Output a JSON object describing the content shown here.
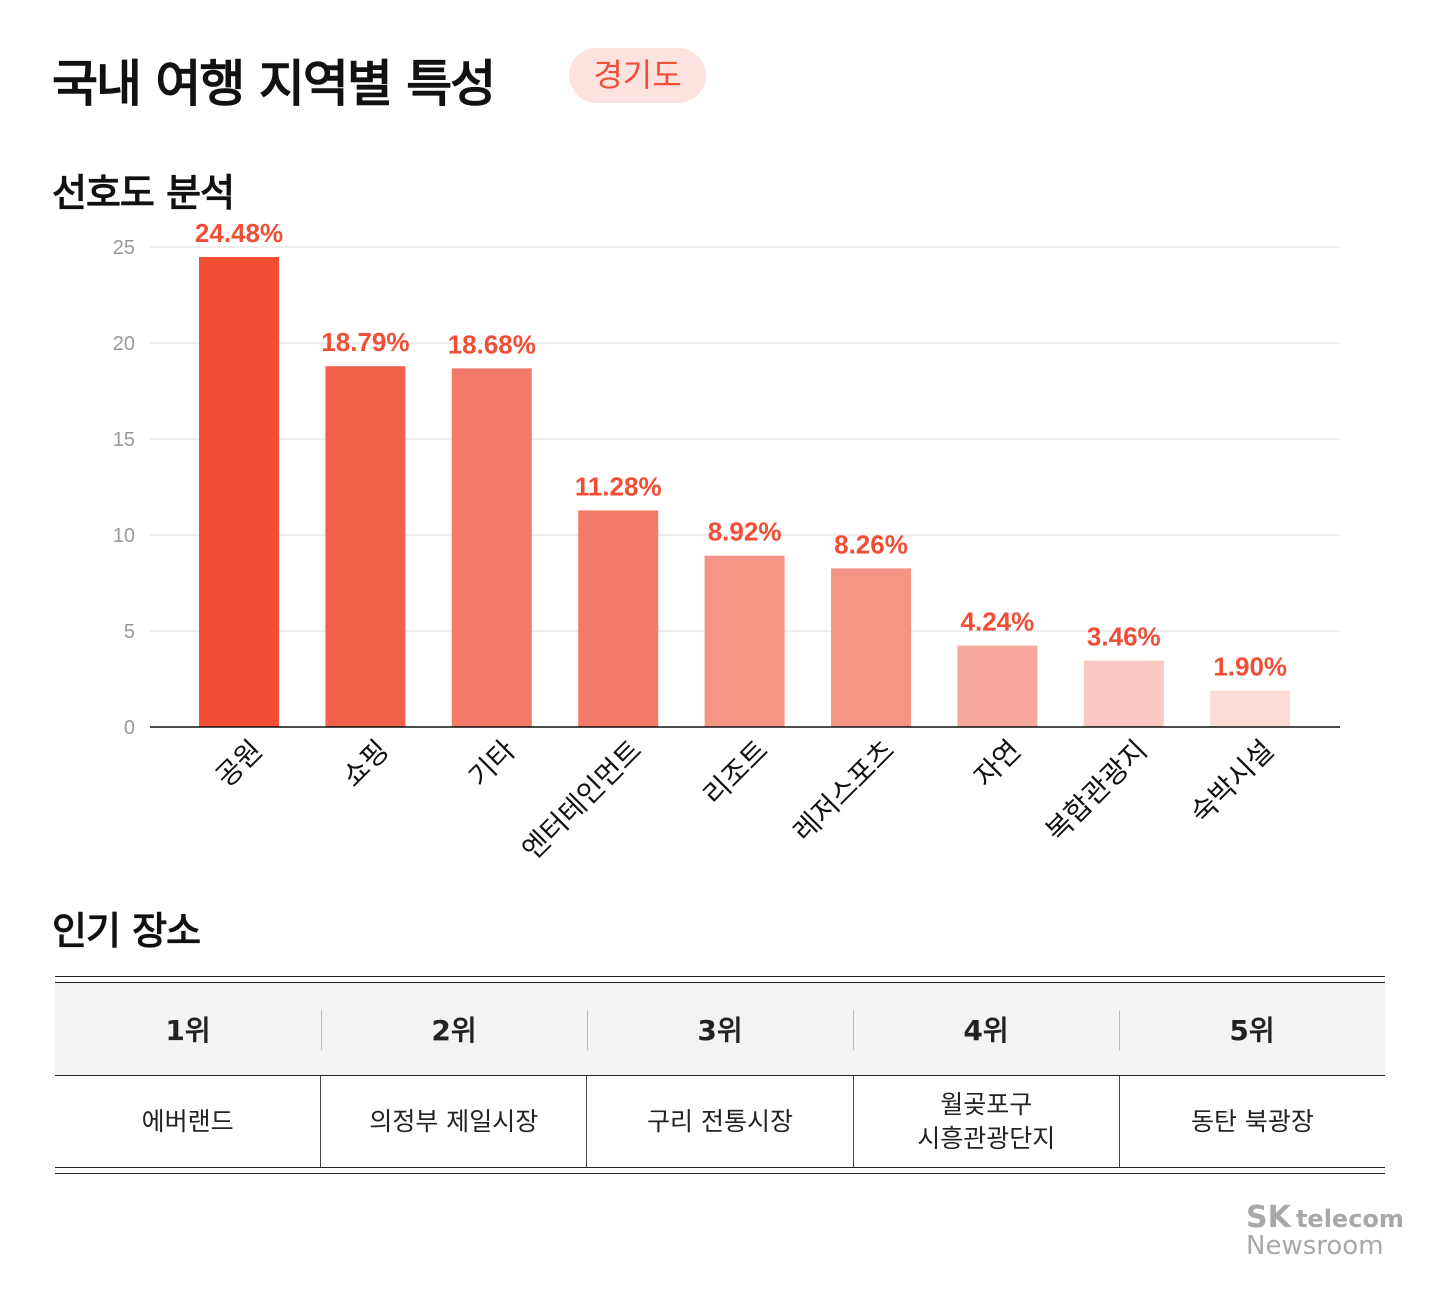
{
  "header": {
    "title": "국내 여행 지역별 특성",
    "region_badge": "경기도"
  },
  "sections": {
    "preference": "선호도 분석",
    "popular": "인기 장소"
  },
  "chart_data": {
    "type": "bar",
    "categories": [
      "공원",
      "쇼핑",
      "기타",
      "엔터테인먼트",
      "리조트",
      "레저스포츠",
      "자연",
      "복합관광지",
      "숙박시설"
    ],
    "values": [
      24.48,
      18.79,
      18.68,
      11.28,
      8.92,
      8.26,
      4.24,
      3.46,
      1.9
    ],
    "data_labels": [
      "24.48%",
      "18.79%",
      "18.68%",
      "11.28%",
      "8.92%",
      "8.26%",
      "4.24%",
      "3.46%",
      "1.90%"
    ],
    "colors": [
      "#f24e36",
      "#f2604a",
      "#f37a69",
      "#f37a69",
      "#f59585",
      "#f59585",
      "#f5a89b",
      "#f9c9c1",
      "#fbdcd7"
    ],
    "label_color": "#f24e36",
    "ylim": [
      0,
      25
    ],
    "yticks": [
      0,
      5,
      10,
      15,
      20,
      25
    ],
    "grid": true,
    "xlabel": "",
    "ylabel": "",
    "title": ""
  },
  "ranking": {
    "headers": [
      "1위",
      "2위",
      "3위",
      "4위",
      "5위"
    ],
    "places": [
      "에버랜드",
      "의정부 제일시장",
      "구리 전통시장",
      "월곶포구\n시흥관광단지",
      "동탄 북광장"
    ]
  },
  "logo": {
    "brand": "SK",
    "brand2": "telecom",
    "sub": "Newsroom"
  }
}
